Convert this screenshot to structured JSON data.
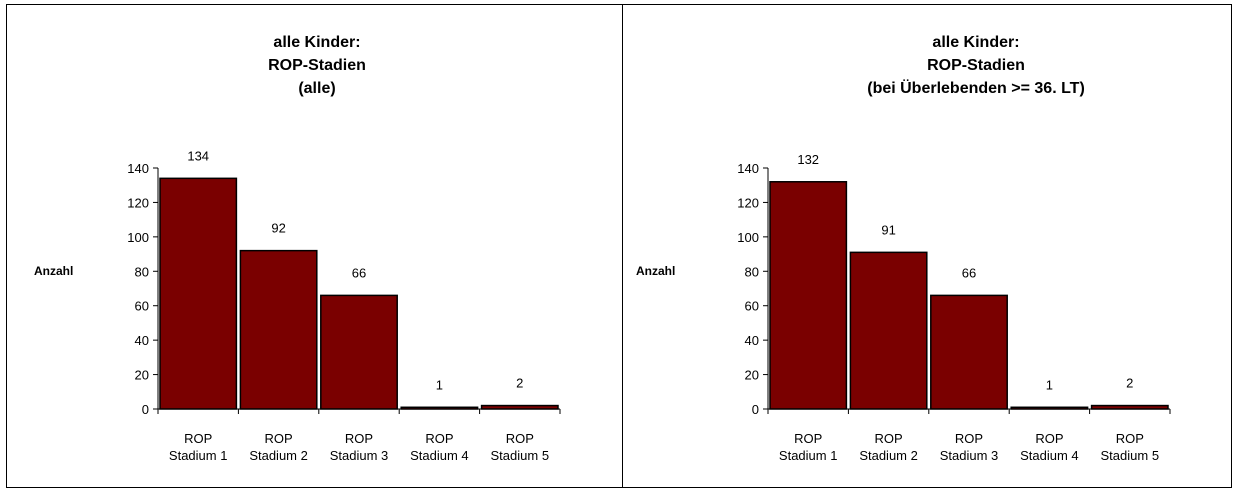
{
  "colors": {
    "bar_fill": "#7a0000",
    "bar_stroke": "#000000",
    "axis": "#000000"
  },
  "chart_data": [
    {
      "type": "bar",
      "title_lines": [
        "alle Kinder:",
        "ROP-Stadien",
        "(alle)"
      ],
      "ylabel": "Anzahl",
      "ylim": [
        0,
        140
      ],
      "yticks": [
        0,
        20,
        40,
        60,
        80,
        100,
        120,
        140
      ],
      "categories": [
        [
          "ROP",
          "Stadium 1"
        ],
        [
          "ROP",
          "Stadium 2"
        ],
        [
          "ROP",
          "Stadium 3"
        ],
        [
          "ROP",
          "Stadium 4"
        ],
        [
          "ROP",
          "Stadium 5"
        ]
      ],
      "values": [
        134,
        92,
        66,
        1,
        2
      ],
      "data_labels": [
        "134",
        "92",
        "66",
        "1",
        "2"
      ],
      "grid": false,
      "legend": "none"
    },
    {
      "type": "bar",
      "title_lines": [
        "alle Kinder:",
        "ROP-Stadien",
        "(bei Überlebenden >= 36. LT)"
      ],
      "ylabel": "Anzahl",
      "ylim": [
        0,
        140
      ],
      "yticks": [
        0,
        20,
        40,
        60,
        80,
        100,
        120,
        140
      ],
      "categories": [
        [
          "ROP",
          "Stadium 1"
        ],
        [
          "ROP",
          "Stadium 2"
        ],
        [
          "ROP",
          "Stadium 3"
        ],
        [
          "ROP",
          "Stadium 4"
        ],
        [
          "ROP",
          "Stadium 5"
        ]
      ],
      "values": [
        132,
        91,
        66,
        1,
        2
      ],
      "data_labels": [
        "132",
        "91",
        "66",
        "1",
        "2"
      ],
      "grid": false,
      "legend": "none"
    }
  ]
}
